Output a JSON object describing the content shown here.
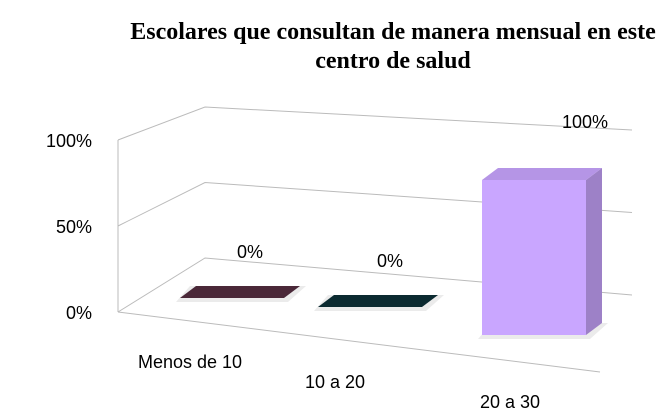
{
  "chart_data": {
    "type": "bar3d",
    "title": "Escolares que consultan de manera mensual en este centro de salud",
    "categories": [
      "Menos de 10",
      "10 a 20",
      "20 a 30"
    ],
    "values": [
      0,
      0,
      100
    ],
    "value_labels": [
      "0%",
      "0%",
      "100%"
    ],
    "colors": [
      "#4a2838",
      "#0b2a30",
      "#c9a6ff"
    ],
    "ylim": [
      0,
      100
    ],
    "yticks": [
      {
        "value": 0,
        "label": "0%"
      },
      {
        "value": 50,
        "label": "50%"
      },
      {
        "value": 100,
        "label": "100%"
      }
    ],
    "grid": true
  }
}
